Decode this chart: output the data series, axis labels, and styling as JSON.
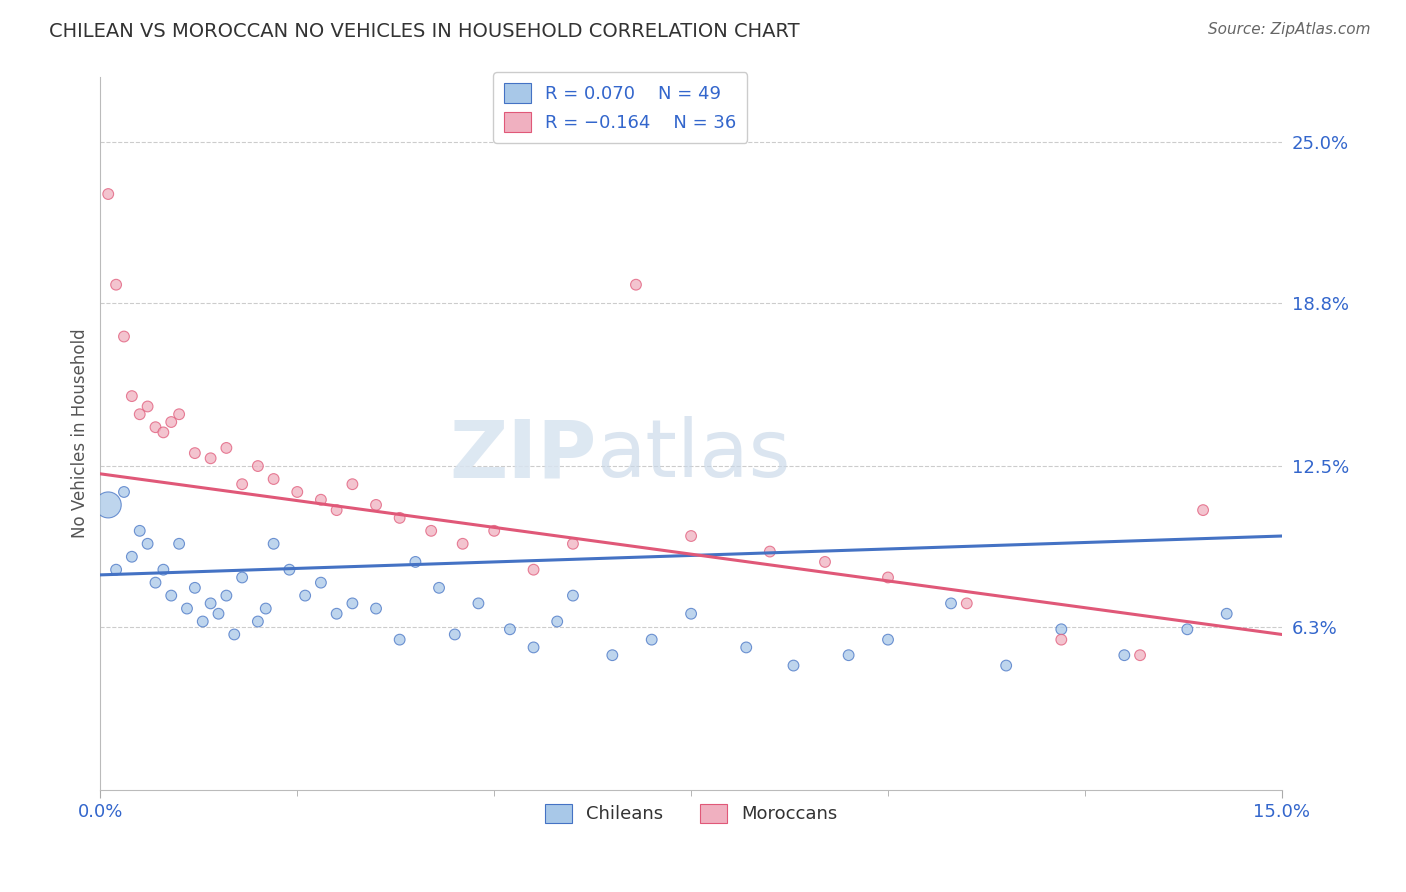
{
  "title": "CHILEAN VS MOROCCAN NO VEHICLES IN HOUSEHOLD CORRELATION CHART",
  "source": "Source: ZipAtlas.com",
  "ylabel": "No Vehicles in Household",
  "ytick_labels": [
    "6.3%",
    "12.5%",
    "18.8%",
    "25.0%"
  ],
  "ytick_values": [
    0.063,
    0.125,
    0.188,
    0.25
  ],
  "xlim": [
    0.0,
    0.15
  ],
  "ylim": [
    0.0,
    0.275
  ],
  "legend_blue_r": "R = 0.070",
  "legend_blue_n": "N = 49",
  "legend_pink_r": "R = -0.164",
  "legend_pink_n": "N = 36",
  "blue_color": "#a8c8e8",
  "pink_color": "#f0b0c0",
  "line_blue_color": "#4472c4",
  "line_pink_color": "#e05878",
  "watermark_zip": "ZIP",
  "watermark_atlas": "atlas",
  "chileans_x": [
    0.001,
    0.002,
    0.003,
    0.004,
    0.005,
    0.006,
    0.007,
    0.008,
    0.009,
    0.01,
    0.011,
    0.012,
    0.013,
    0.014,
    0.015,
    0.016,
    0.017,
    0.018,
    0.02,
    0.021,
    0.022,
    0.024,
    0.026,
    0.028,
    0.03,
    0.032,
    0.035,
    0.038,
    0.04,
    0.043,
    0.045,
    0.048,
    0.052,
    0.055,
    0.058,
    0.06,
    0.065,
    0.07,
    0.075,
    0.082,
    0.088,
    0.095,
    0.1,
    0.108,
    0.115,
    0.122,
    0.13,
    0.138,
    0.143
  ],
  "chileans_y": [
    0.11,
    0.085,
    0.115,
    0.09,
    0.1,
    0.095,
    0.08,
    0.085,
    0.075,
    0.095,
    0.07,
    0.078,
    0.065,
    0.072,
    0.068,
    0.075,
    0.06,
    0.082,
    0.065,
    0.07,
    0.095,
    0.085,
    0.075,
    0.08,
    0.068,
    0.072,
    0.07,
    0.058,
    0.088,
    0.078,
    0.06,
    0.072,
    0.062,
    0.055,
    0.065,
    0.075,
    0.052,
    0.058,
    0.068,
    0.055,
    0.048,
    0.052,
    0.058,
    0.072,
    0.048,
    0.062,
    0.052,
    0.062,
    0.068
  ],
  "chileans_size": [
    350,
    60,
    60,
    60,
    60,
    60,
    60,
    60,
    60,
    60,
    60,
    60,
    60,
    60,
    60,
    60,
    60,
    60,
    60,
    60,
    60,
    60,
    60,
    60,
    60,
    60,
    60,
    60,
    60,
    60,
    60,
    60,
    60,
    60,
    60,
    60,
    60,
    60,
    60,
    60,
    60,
    60,
    60,
    60,
    60,
    60,
    60,
    60,
    60
  ],
  "moroccans_x": [
    0.001,
    0.002,
    0.003,
    0.004,
    0.005,
    0.006,
    0.007,
    0.008,
    0.009,
    0.01,
    0.012,
    0.014,
    0.016,
    0.018,
    0.02,
    0.022,
    0.025,
    0.028,
    0.03,
    0.032,
    0.035,
    0.038,
    0.042,
    0.046,
    0.05,
    0.055,
    0.06,
    0.068,
    0.075,
    0.085,
    0.092,
    0.1,
    0.11,
    0.122,
    0.132,
    0.14
  ],
  "moroccans_y": [
    0.23,
    0.195,
    0.175,
    0.152,
    0.145,
    0.148,
    0.14,
    0.138,
    0.142,
    0.145,
    0.13,
    0.128,
    0.132,
    0.118,
    0.125,
    0.12,
    0.115,
    0.112,
    0.108,
    0.118,
    0.11,
    0.105,
    0.1,
    0.095,
    0.1,
    0.085,
    0.095,
    0.195,
    0.098,
    0.092,
    0.088,
    0.082,
    0.072,
    0.058,
    0.052,
    0.108
  ],
  "moroccans_size": [
    60,
    60,
    60,
    60,
    60,
    60,
    60,
    60,
    60,
    60,
    60,
    60,
    60,
    60,
    60,
    60,
    60,
    60,
    60,
    60,
    60,
    60,
    60,
    60,
    60,
    60,
    60,
    60,
    60,
    60,
    60,
    60,
    60,
    60,
    60,
    60
  ],
  "blue_line_x0": 0.0,
  "blue_line_y0": 0.083,
  "blue_line_x1": 0.15,
  "blue_line_y1": 0.098,
  "pink_line_x0": 0.0,
  "pink_line_y0": 0.122,
  "pink_line_x1": 0.15,
  "pink_line_y1": 0.06
}
